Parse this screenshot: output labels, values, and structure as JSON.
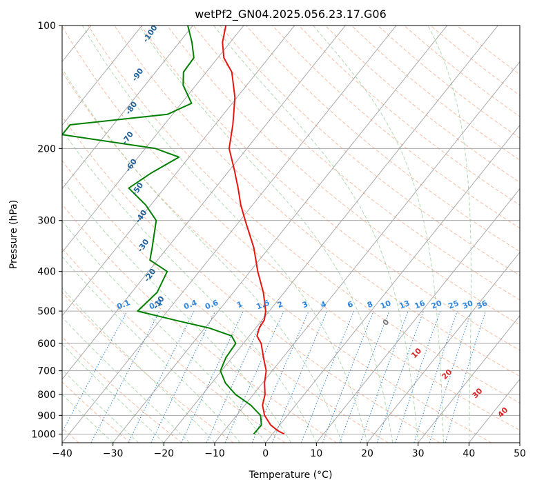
{
  "chart_data": {
    "type": "skew-t",
    "title": "wetPf2_GN04.2025.056.23.17.G06",
    "xlabel": "Temperature (°C)",
    "ylabel": "Pressure (hPa)",
    "xlim": [
      -40,
      50
    ],
    "ylim": [
      1050,
      100
    ],
    "y_scale": "log",
    "grid": true,
    "x_ticks": [
      -40,
      -30,
      -20,
      -10,
      0,
      10,
      20,
      30,
      40,
      50
    ],
    "x_tick_labels": [
      "−40",
      "−30",
      "−20",
      "−10",
      "0",
      "10",
      "20",
      "30",
      "40",
      "50"
    ],
    "y_ticks": [
      100,
      200,
      300,
      400,
      500,
      600,
      700,
      800,
      900,
      1000
    ],
    "y_tick_labels": [
      "100",
      "200",
      "300",
      "400",
      "500",
      "600",
      "700",
      "800",
      "900",
      "1000"
    ],
    "series": [
      {
        "color": "#e8150f",
        "points": [
          [
            1000,
            2.3
          ],
          [
            980,
            0.4
          ],
          [
            950,
            -1.8
          ],
          [
            900,
            -4.5
          ],
          [
            850,
            -6.5
          ],
          [
            800,
            -7.7
          ],
          [
            750,
            -9.6
          ],
          [
            700,
            -11.2
          ],
          [
            650,
            -13.8
          ],
          [
            600,
            -16.5
          ],
          [
            575,
            -18.5
          ],
          [
            550,
            -19.3
          ],
          [
            525,
            -19.6
          ],
          [
            500,
            -20.7
          ],
          [
            450,
            -24.1
          ],
          [
            400,
            -28.5
          ],
          [
            350,
            -33.0
          ],
          [
            300,
            -39.0
          ],
          [
            275,
            -42.3
          ],
          [
            250,
            -45.5
          ],
          [
            225,
            -49.2
          ],
          [
            200,
            -53.5
          ],
          [
            175,
            -56.5
          ],
          [
            150,
            -60.4
          ],
          [
            130,
            -65.0
          ],
          [
            120,
            -68.8
          ],
          [
            110,
            -71.5
          ],
          [
            100,
            -73.5
          ]
        ]
      },
      {
        "color": "#008000",
        "points": [
          [
            1000,
            -3.7
          ],
          [
            950,
            -3.6
          ],
          [
            900,
            -5.3
          ],
          [
            850,
            -8.8
          ],
          [
            800,
            -13.5
          ],
          [
            750,
            -17.3
          ],
          [
            700,
            -20.2
          ],
          [
            650,
            -21.2
          ],
          [
            600,
            -21.5
          ],
          [
            575,
            -23.5
          ],
          [
            550,
            -29.2
          ],
          [
            525,
            -37.5
          ],
          [
            500,
            -45.9
          ],
          [
            450,
            -45.0
          ],
          [
            400,
            -46.3
          ],
          [
            375,
            -51.5
          ],
          [
            350,
            -53.0
          ],
          [
            300,
            -56.5
          ],
          [
            275,
            -61.0
          ],
          [
            250,
            -67.0
          ],
          [
            230,
            -65.0
          ],
          [
            210,
            -62.0
          ],
          [
            200,
            -68.0
          ],
          [
            185,
            -88.5
          ],
          [
            175,
            -88.5
          ],
          [
            165,
            -71.0
          ],
          [
            155,
            -68.0
          ],
          [
            140,
            -72.5
          ],
          [
            130,
            -74.5
          ],
          [
            120,
            -74.7
          ],
          [
            110,
            -77.5
          ],
          [
            100,
            -81.0
          ]
        ]
      }
    ],
    "annotations": {
      "mixing_ratio": [
        "0.1",
        "0.2",
        "0.4",
        "0.6",
        "1",
        "1.5",
        "2",
        "3",
        "4",
        "6",
        "8",
        "10",
        "13",
        "16",
        "20",
        "25",
        "30",
        "36"
      ],
      "moist_adiabat": [
        "-100",
        "-90",
        "-80",
        "-70",
        "-60",
        "-50",
        "-40",
        "-30",
        "-20",
        "-10"
      ],
      "dry_adiabat": [
        "0",
        "10",
        "20",
        "30",
        "40"
      ]
    }
  }
}
